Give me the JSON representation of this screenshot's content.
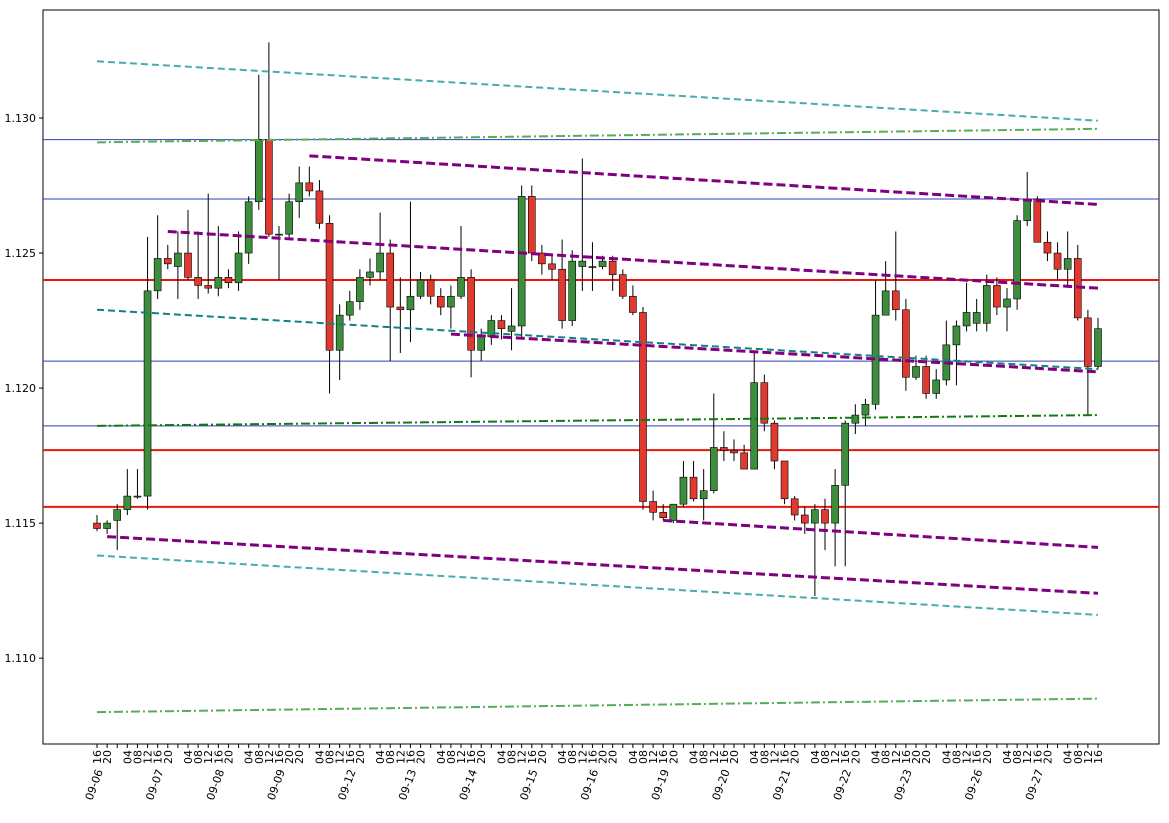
{
  "chart_data": {
    "type": "candlestick",
    "categories": [
      "16",
      "20",
      null,
      "04",
      "08",
      "12",
      "16",
      "20",
      null,
      "04",
      "08",
      "12",
      "16",
      "20",
      null,
      "04",
      "08",
      "12",
      "16",
      "20",
      "20",
      null,
      "04",
      "08",
      "12",
      "16",
      "20",
      null,
      "04",
      "08",
      "12",
      "16",
      "20",
      null,
      "04",
      "08",
      "12",
      "16",
      "20",
      null,
      "04",
      "08",
      "12",
      "16",
      "20",
      null,
      "04",
      "08",
      "12",
      "16",
      "20",
      "20",
      null,
      "04",
      "08",
      "12",
      "16",
      "20",
      null,
      "04",
      "08",
      "12",
      "16",
      "20",
      null,
      "04",
      "08",
      "12",
      "16",
      "20",
      null,
      "04",
      "08",
      "12",
      "16",
      "20",
      null,
      "04",
      "08",
      "12",
      "16",
      "20",
      "20",
      null,
      "04",
      "08",
      "12",
      "16",
      "20",
      null,
      "04",
      "08",
      "12",
      "16",
      "20",
      null,
      "04",
      "08",
      "12",
      "16"
    ],
    "date_labels": [
      "09-06",
      null,
      null,
      null,
      null,
      null,
      "09-07",
      null,
      null,
      null,
      null,
      null,
      "09-08",
      null,
      null,
      null,
      null,
      null,
      "09-09",
      null,
      null,
      null,
      null,
      null,
      null,
      "09-12",
      null,
      null,
      null,
      null,
      null,
      "09-13",
      null,
      null,
      null,
      null,
      null,
      "09-14",
      null,
      null,
      null,
      null,
      null,
      "09-15",
      null,
      null,
      null,
      null,
      null,
      "09-16",
      null,
      null,
      null,
      null,
      null,
      null,
      "09-19",
      null,
      null,
      null,
      null,
      null,
      "09-20",
      null,
      null,
      null,
      null,
      null,
      "09-21",
      null,
      null,
      null,
      null,
      null,
      "09-22",
      null,
      null,
      null,
      null,
      null,
      "09-23",
      null,
      null,
      null,
      null,
      null,
      null,
      "09-26",
      null,
      null,
      null,
      null,
      null,
      "09-27",
      null,
      null,
      null,
      null,
      null,
      null
    ],
    "open": [
      1.115,
      1.1148,
      1.1151,
      1.1155,
      1.116,
      1.116,
      1.1236,
      1.1248,
      1.1245,
      1.125,
      1.1241,
      1.1238,
      1.1237,
      1.1241,
      1.1239,
      1.125,
      1.1269,
      1.1292,
      1.1257,
      1.1257,
      1.1269,
      1.1276,
      1.1273,
      1.1261,
      1.1214,
      1.1227,
      1.1232,
      1.1241,
      1.1243,
      1.125,
      1.123,
      1.1229,
      1.1234,
      1.124,
      1.1234,
      1.123,
      1.1234,
      1.1241,
      1.1214,
      1.1219,
      1.1225,
      1.1221,
      1.1223,
      1.1271,
      1.125,
      1.1246,
      1.1244,
      1.1225,
      1.1245,
      1.1245,
      1.1245,
      1.1247,
      1.1242,
      1.1234,
      1.1228,
      1.1158,
      1.1154,
      1.1151,
      1.1157,
      1.1167,
      1.1159,
      1.1162,
      1.1178,
      1.1177,
      1.1176,
      1.117,
      1.1202,
      1.1187,
      1.1173,
      1.1159,
      1.1153,
      1.115,
      1.1155,
      1.115,
      1.1164,
      1.1187,
      1.119,
      1.1194,
      1.1227,
      1.1236,
      1.1229,
      1.1204,
      1.1208,
      1.1198,
      1.1203,
      1.1216,
      1.1223,
      1.1224,
      1.1224,
      1.1238,
      1.123,
      1.1233,
      1.1262,
      1.127,
      1.1254,
      1.125,
      1.1244,
      1.1248,
      1.1226,
      1.1208
    ],
    "high": [
      1.1153,
      1.1151,
      1.1157,
      1.117,
      1.117,
      1.1256,
      1.1264,
      1.1253,
      1.1258,
      1.1266,
      1.1258,
      1.1272,
      1.126,
      1.1244,
      1.1258,
      1.1271,
      1.1316,
      1.1328,
      1.126,
      1.1272,
      1.1282,
      1.1282,
      1.1277,
      1.1264,
      1.1231,
      1.1236,
      1.1244,
      1.1248,
      1.1265,
      1.1255,
      1.1241,
      1.1269,
      1.1243,
      1.1242,
      1.1237,
      1.1238,
      1.126,
      1.1244,
      1.1222,
      1.1227,
      1.1227,
      1.1237,
      1.1275,
      1.1275,
      1.1253,
      1.1249,
      1.1255,
      1.1251,
      1.1285,
      1.1254,
      1.1249,
      1.1249,
      1.1244,
      1.1238,
      1.123,
      1.1162,
      1.1157,
      1.1157,
      1.1173,
      1.1173,
      1.117,
      1.1198,
      1.1184,
      1.1181,
      1.1179,
      1.1213,
      1.1205,
      1.1188,
      1.1173,
      1.116,
      1.1156,
      1.1157,
      1.1159,
      1.117,
      1.1188,
      1.1194,
      1.1196,
      1.124,
      1.1247,
      1.1258,
      1.1233,
      1.1212,
      1.1212,
      1.1207,
      1.1225,
      1.1225,
      1.1239,
      1.1233,
      1.1242,
      1.1241,
      1.1237,
      1.1264,
      1.128,
      1.1271,
      1.1258,
      1.1254,
      1.1258,
      1.1253,
      1.1229,
      1.1226
    ],
    "low": [
      1.1147,
      1.1146,
      1.114,
      1.1153,
      1.1159,
      1.1155,
      1.1233,
      1.1244,
      1.1233,
      1.124,
      1.1233,
      1.1235,
      1.1234,
      1.1237,
      1.1236,
      1.1246,
      1.1266,
      1.1256,
      1.124,
      1.1255,
      1.1263,
      1.1271,
      1.1259,
      1.1198,
      1.1203,
      1.1225,
      1.1229,
      1.1238,
      1.124,
      1.121,
      1.1213,
      1.1217,
      1.1233,
      1.1231,
      1.1227,
      1.1222,
      1.1233,
      1.1204,
      1.121,
      1.1216,
      1.1218,
      1.1214,
      1.1218,
      1.1247,
      1.1242,
      1.124,
      1.1222,
      1.1223,
      1.1236,
      1.1236,
      1.1244,
      1.1236,
      1.1233,
      1.1227,
      1.1155,
      1.1151,
      1.1151,
      1.115,
      1.1156,
      1.1158,
      1.1151,
      1.1161,
      1.1173,
      1.1173,
      1.117,
      1.117,
      1.1184,
      1.117,
      1.1157,
      1.1151,
      1.1146,
      1.1123,
      1.114,
      1.1134,
      1.1134,
      1.1183,
      1.1186,
      1.1192,
      1.1227,
      1.1225,
      1.1199,
      1.1203,
      1.1196,
      1.1196,
      1.1201,
      1.1201,
      1.1221,
      1.1221,
      1.1221,
      1.1227,
      1.1221,
      1.1229,
      1.126,
      1.1254,
      1.1247,
      1.124,
      1.1238,
      1.1225,
      1.119,
      1.1207
    ],
    "close": [
      1.1148,
      1.115,
      1.1155,
      1.116,
      1.116,
      1.1236,
      1.1248,
      1.1246,
      1.125,
      1.1241,
      1.1238,
      1.1237,
      1.1241,
      1.1239,
      1.125,
      1.1269,
      1.1292,
      1.1257,
      1.1257,
      1.1269,
      1.1276,
      1.1273,
      1.1261,
      1.1214,
      1.1227,
      1.1232,
      1.1241,
      1.1243,
      1.125,
      1.123,
      1.1229,
      1.1234,
      1.124,
      1.1234,
      1.123,
      1.1234,
      1.1241,
      1.1214,
      1.1219,
      1.1225,
      1.1222,
      1.1223,
      1.1271,
      1.125,
      1.1246,
      1.1244,
      1.1225,
      1.1247,
      1.1247,
      1.1245,
      1.1247,
      1.1242,
      1.1234,
      1.1228,
      1.1158,
      1.1154,
      1.1152,
      1.1157,
      1.1167,
      1.1159,
      1.1162,
      1.1178,
      1.1177,
      1.1176,
      1.117,
      1.1202,
      1.1187,
      1.1173,
      1.1159,
      1.1153,
      1.115,
      1.1155,
      1.115,
      1.1164,
      1.1187,
      1.119,
      1.1194,
      1.1227,
      1.1236,
      1.1229,
      1.1204,
      1.1208,
      1.1198,
      1.1203,
      1.1216,
      1.1223,
      1.1228,
      1.1228,
      1.1238,
      1.123,
      1.1233,
      1.1262,
      1.127,
      1.1254,
      1.125,
      1.1244,
      1.1248,
      1.1226,
      1.1208,
      1.1222
    ],
    "up_color": "#3c8d3c",
    "down_color": "#e03a30",
    "ylim": [
      1.10682,
      1.134
    ],
    "yticks": [
      {
        "value": 1.11,
        "label": "1.110"
      },
      {
        "value": 1.115,
        "label": "1.115"
      },
      {
        "value": 1.12,
        "label": "1.120"
      },
      {
        "value": 1.125,
        "label": "1.125"
      },
      {
        "value": 1.13,
        "label": "1.130"
      }
    ],
    "hlines": [
      {
        "value": 1.1292,
        "color": "#2e3fb8",
        "style": "solid"
      },
      {
        "value": 1.127,
        "color": "#2e3fb8",
        "style": "solid"
      },
      {
        "value": 1.121,
        "color": "#2e3fb8",
        "style": "solid"
      },
      {
        "value": 1.1186,
        "color": "#2e3fb8",
        "style": "solid"
      },
      {
        "value": 1.124,
        "color": "#e8160c",
        "style": "bold-solid"
      },
      {
        "value": 1.1177,
        "color": "#e8160c",
        "style": "bold-solid"
      },
      {
        "value": 1.1156,
        "color": "#e8160c",
        "style": "bold-solid"
      }
    ],
    "lines": [
      {
        "start": 0,
        "end": 99,
        "values": [
          1.1321,
          1.1299
        ],
        "color": "#4aabab",
        "style": "dashed"
      },
      {
        "start": 0,
        "end": 99,
        "values": [
          1.1138,
          1.1116
        ],
        "color": "#4aabab",
        "style": "dashed"
      },
      {
        "start": 0,
        "end": 99,
        "values": [
          1.1291,
          1.1296
        ],
        "color": "#55ad55",
        "style": "dashdot"
      },
      {
        "start": 0,
        "end": 99,
        "values": [
          1.108,
          1.1085
        ],
        "color": "#55ad55",
        "style": "dashdot"
      },
      {
        "start": 0,
        "end": 99,
        "values": [
          1.1186,
          1.119
        ],
        "color": "#117a11",
        "style": "dashdot"
      },
      {
        "start": 0,
        "end": 99,
        "values": [
          1.1229,
          1.1207
        ],
        "color": "#128080",
        "style": "dashed"
      },
      {
        "start": 21,
        "end": 99,
        "values": [
          1.1286,
          1.1268
        ],
        "color": "#800080",
        "style": "bold-dashed"
      },
      {
        "start": 7,
        "end": 99,
        "values": [
          1.1258,
          1.1237
        ],
        "color": "#800080",
        "style": "bold-dashed"
      },
      {
        "start": 35,
        "end": 99,
        "values": [
          1.122,
          1.1206
        ],
        "color": "#800080",
        "style": "bold-dashed"
      },
      {
        "start": 1,
        "end": 99,
        "values": [
          1.1145,
          1.1124
        ],
        "color": "#800080",
        "style": "bold-dashed"
      },
      {
        "start": 56,
        "end": 99,
        "values": [
          1.1151,
          1.1141
        ],
        "color": "#800080",
        "style": "bold-dashed"
      }
    ]
  }
}
